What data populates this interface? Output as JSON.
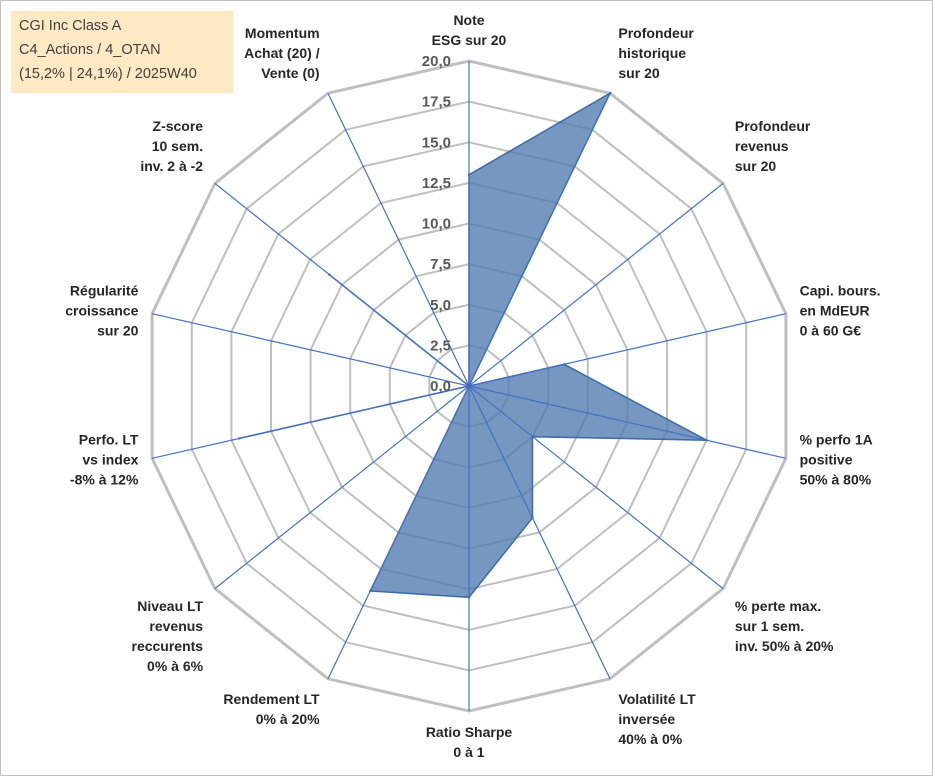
{
  "info_box": {
    "line1": "CGI Inc Class A",
    "line2": "C4_Actions / 4_OTAN",
    "line3": "(15,2% | 24,1%) / 2025W40"
  },
  "chart_data": {
    "type": "radar",
    "rmin": 0,
    "rmax": 20,
    "tick_step": 2.5,
    "tick_labels": [
      "0,0",
      "2,5",
      "5,0",
      "7,5",
      "10,0",
      "12,5",
      "15,0",
      "17,5",
      "20,0"
    ],
    "axes": [
      [
        "Note",
        "ESG sur 20"
      ],
      [
        "Profondeur",
        "historique",
        "sur 20"
      ],
      [
        "Profondeur",
        "revenus",
        "sur 20"
      ],
      [
        "Capi. bours.",
        "en MdEUR",
        "0 à 60 G€"
      ],
      [
        "% perfo 1A",
        "positive",
        "50% à 80%"
      ],
      [
        "% perte max.",
        "sur 1 sem.",
        "inv. 50% à 20%"
      ],
      [
        "Volatilité LT",
        "inversée",
        "40% à 0%"
      ],
      [
        "Ratio Sharpe",
        "0 à 1"
      ],
      [
        "Rendement LT",
        "0% à 20%"
      ],
      [
        "Niveau LT",
        "revenus",
        "reccurents",
        "0% à 6%"
      ],
      [
        "Perfo. LT",
        "vs index",
        "-8% à 12%"
      ],
      [
        "Régularité",
        "croissance",
        "sur 20"
      ],
      [
        "Z-score",
        "10 sem.",
        "inv. 2 à -2"
      ],
      [
        "Momentum",
        "Achat (20) /",
        "Vente (0)"
      ]
    ],
    "values": [
      13,
      20,
      0,
      6,
      15,
      5,
      9,
      13,
      14,
      0,
      14.5,
      0,
      11,
      0
    ],
    "series_color": "#4f7aad",
    "grid_color": "#bfbfbf",
    "spoke_color": "#4472c4",
    "grid": true,
    "legend": "none"
  }
}
